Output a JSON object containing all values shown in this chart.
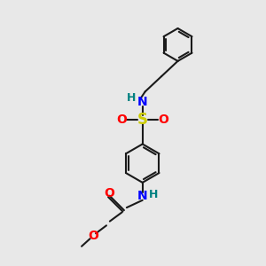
{
  "bg_color": "#e8e8e8",
  "bond_color": "#1a1a1a",
  "N_color": "#0000ff",
  "O_color": "#ff0000",
  "S_color": "#cccc00",
  "H_color": "#008080",
  "font_size": 10,
  "bond_width": 1.5,
  "fig_size": [
    3.0,
    3.0
  ],
  "dpi": 100,
  "xlim": [
    0,
    10
  ],
  "ylim": [
    0,
    10
  ]
}
